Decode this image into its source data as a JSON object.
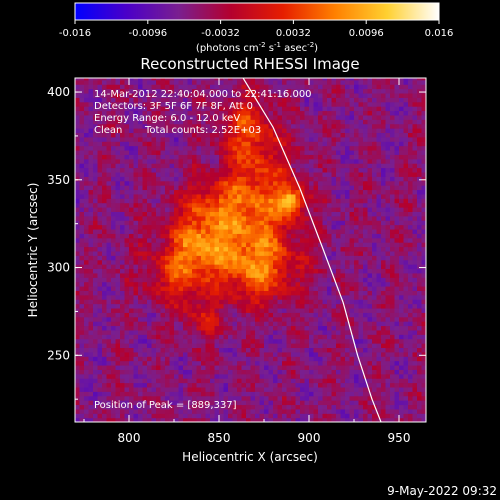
{
  "chart_data": {
    "type": "heatmap",
    "title": "Reconstructed RHESSI Image",
    "xlabel": "Heliocentric X (arcsec)",
    "ylabel": "Heliocentric Y (arcsec)",
    "xlim": [
      770,
      965
    ],
    "ylim": [
      212,
      408
    ],
    "x_ticks": [
      800,
      850,
      900,
      950
    ],
    "y_ticks": [
      250,
      300,
      350,
      400
    ],
    "colorbar": {
      "range": [
        -0.016,
        0.016
      ],
      "ticks": [
        -0.016,
        -0.0096,
        -0.0032,
        0.0032,
        0.0096,
        0.016
      ],
      "tick_labels": [
        "-0.016",
        "-0.0096",
        "-0.0032",
        "0.0032",
        "0.0096",
        "0.016"
      ],
      "unit_parts": [
        "(photons cm",
        "-2",
        " s",
        "-1",
        " asec",
        "-2",
        ")"
      ],
      "colors": [
        "#0000ff",
        "#4b00c8",
        "#7a1f8f",
        "#b4002d",
        "#e61e00",
        "#ff8000",
        "#ffd030",
        "#ffffff"
      ]
    },
    "annotations": {
      "time": "14-Mar-2012 22:40:04.000 to 22:41:16.000",
      "detectors": "Detectors: 3F 5F 6F 7F 8F, Att 0",
      "energy": "Energy Range: 6.0 - 12.0 keV",
      "clean": "Clean",
      "counts": "Total counts: 2.52E+03",
      "peak": "Position of Peak = [889,337]"
    },
    "peak": [
      889,
      337
    ],
    "limb_points": [
      [
        861,
        412
      ],
      [
        880,
        380
      ],
      [
        895,
        345
      ],
      [
        908,
        310
      ],
      [
        919,
        280
      ],
      [
        927,
        250
      ],
      [
        935,
        225
      ],
      [
        940,
        212
      ]
    ],
    "sources": [
      {
        "x": 889,
        "y": 337,
        "sx": 5,
        "sy": 5,
        "amp": 0.013
      },
      {
        "x": 872,
        "y": 340,
        "sx": 14,
        "sy": 22,
        "amp": 0.009
      },
      {
        "x": 864,
        "y": 378,
        "sx": 10,
        "sy": 14,
        "amp": 0.0075
      },
      {
        "x": 846,
        "y": 335,
        "sx": 14,
        "sy": 10,
        "amp": 0.0075
      },
      {
        "x": 852,
        "y": 310,
        "sx": 24,
        "sy": 14,
        "amp": 0.0085
      },
      {
        "x": 872,
        "y": 294,
        "sx": 14,
        "sy": 12,
        "amp": 0.0075
      },
      {
        "x": 826,
        "y": 292,
        "sx": 12,
        "sy": 10,
        "amp": 0.0065
      },
      {
        "x": 836,
        "y": 312,
        "sx": 10,
        "sy": 10,
        "amp": 0.0065
      },
      {
        "x": 840,
        "y": 270,
        "sx": 9,
        "sy": 9,
        "amp": 0.005
      }
    ],
    "background": -0.0058,
    "grid": false
  },
  "footer": {
    "date": "9-May-2022 09:32"
  }
}
